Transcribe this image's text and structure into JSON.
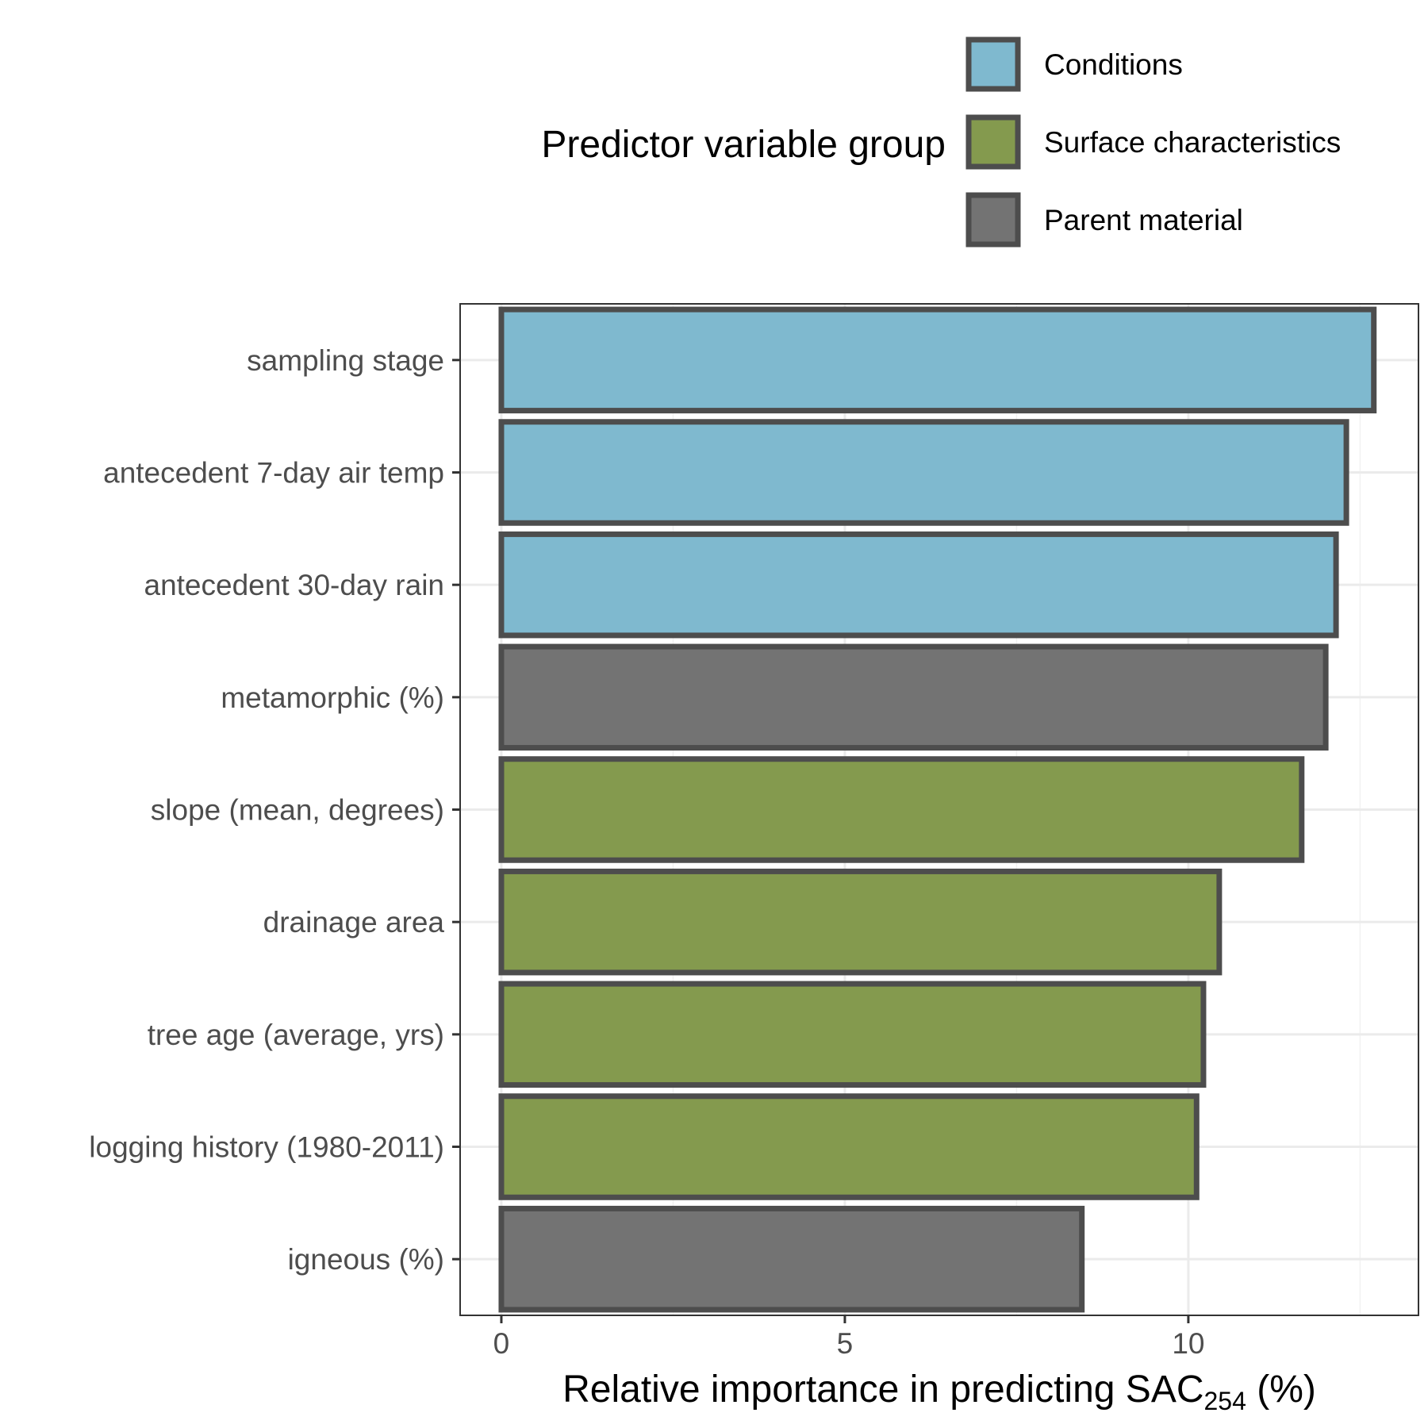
{
  "chart_data": {
    "type": "bar",
    "orientation": "horizontal",
    "categories": [
      "sampling stage",
      "antecedent 7-day air temp",
      "antecedent 30-day rain",
      "metamorphic (%)",
      "slope (mean, degrees)",
      "drainage area",
      "tree age (average, yrs)",
      "logging history (1980-2011)",
      "igneous (%)"
    ],
    "values": [
      12.7,
      12.3,
      12.15,
      12.0,
      11.65,
      10.45,
      10.22,
      10.12,
      8.45
    ],
    "groups": [
      "Conditions",
      "Conditions",
      "Conditions",
      "Parent material",
      "Surface characteristics",
      "Surface characteristics",
      "Surface characteristics",
      "Surface characteristics",
      "Parent material"
    ],
    "xlabel": {
      "main": "Relative importance in predicting SAC",
      "subscript": "254",
      "suffix": " (%)"
    },
    "ylabel": "",
    "xlim": [
      -0.6,
      13.35
    ],
    "xticks": [
      0,
      5,
      10
    ],
    "grid": true,
    "legend": {
      "title": "Predictor variable group",
      "position": "top",
      "entries": [
        {
          "name": "Conditions",
          "color": "#7fb9cf"
        },
        {
          "name": "Surface characteristics",
          "color": "#849a4e"
        },
        {
          "name": "Parent material",
          "color": "#737373"
        }
      ]
    },
    "bar_outline_color": "#4d4d4d"
  }
}
